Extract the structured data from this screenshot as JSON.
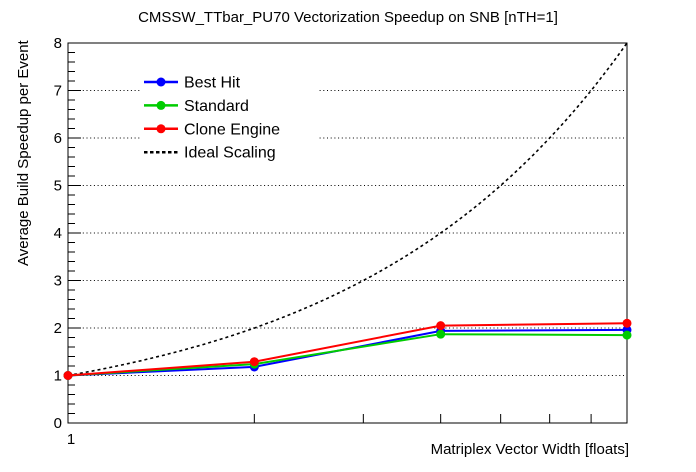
{
  "chart_data": {
    "type": "line",
    "title": "CMSSW_TTbar_PU70 Vectorization Speedup on SNB [nTH=1]",
    "xlabel": "Matriplex Vector Width [floats]",
    "ylabel": "Average Build Speedup per Event",
    "x_scale": "log",
    "xlim": [
      1,
      8
    ],
    "ylim": [
      0,
      8
    ],
    "x": [
      1,
      2,
      4,
      8
    ],
    "yticks": [
      0,
      1,
      2,
      3,
      4,
      5,
      6,
      7,
      8
    ],
    "y_minor_step": 0.2,
    "x_minor_ticks": [
      2,
      3,
      4,
      5,
      6,
      7,
      8
    ],
    "x_tick_labels": [
      {
        "value": 1,
        "label": "1"
      }
    ],
    "grid": {
      "horizontal": "dotted",
      "vertical": "none"
    },
    "legend": {
      "position": "top-left",
      "background": "#ffffff"
    },
    "series": [
      {
        "name": "Best Hit",
        "color": "#0000ff",
        "line_style": "solid",
        "marker": "circle",
        "values": [
          1.0,
          1.18,
          1.94,
          1.96
        ]
      },
      {
        "name": "Standard",
        "color": "#00cc00",
        "line_style": "solid",
        "marker": "circle",
        "values": [
          1.0,
          1.24,
          1.87,
          1.85
        ]
      },
      {
        "name": "Clone Engine",
        "color": "#ff0000",
        "line_style": "solid",
        "marker": "circle",
        "values": [
          1.0,
          1.29,
          2.05,
          2.1
        ]
      },
      {
        "name": "Ideal Scaling",
        "color": "#000000",
        "line_style": "dashed",
        "marker": "none",
        "values": [
          1,
          2,
          4,
          8
        ]
      }
    ]
  }
}
